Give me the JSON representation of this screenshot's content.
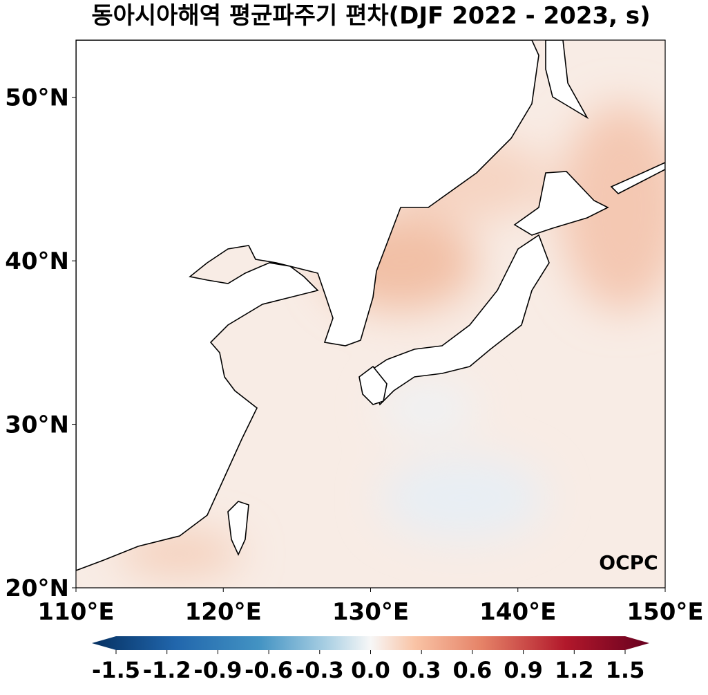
{
  "title": "동아시아해역 평균파주기 편차(DJF 2022 - 2023, s)",
  "map": {
    "xlim": [
      110,
      150
    ],
    "ylim": [
      20,
      53.5
    ],
    "xticks": [
      {
        "value": 110,
        "label": "110°E"
      },
      {
        "value": 120,
        "label": "120°E"
      },
      {
        "value": 130,
        "label": "130°E"
      },
      {
        "value": 140,
        "label": "140°E"
      },
      {
        "value": 150,
        "label": "150°E"
      }
    ],
    "yticks": [
      {
        "value": 20,
        "label": "20°N"
      },
      {
        "value": 30,
        "label": "30°N"
      },
      {
        "value": 40,
        "label": "40°N"
      },
      {
        "value": 50,
        "label": "50°N"
      }
    ]
  },
  "colorbar": {
    "lim": [
      -1.5,
      1.5
    ],
    "ticks": [
      -1.5,
      -1.2,
      -0.9,
      -0.6,
      -0.3,
      {
        "value": 0,
        "label": "0.0"
      },
      0.3,
      0.6,
      0.9,
      1.2,
      1.5
    ]
  },
  "logo": "OCPC"
}
